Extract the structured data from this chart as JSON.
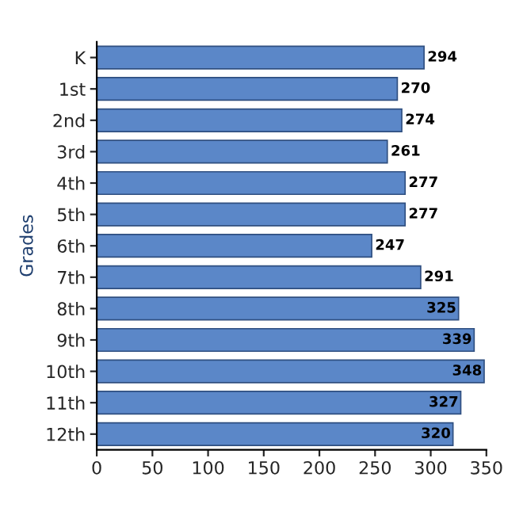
{
  "chart_data": {
    "type": "bar",
    "orientation": "horizontal",
    "ylabel": "Grades",
    "categories": [
      "K",
      "1st",
      "2nd",
      "3rd",
      "4th",
      "5th",
      "6th",
      "7th",
      "8th",
      "9th",
      "10th",
      "11th",
      "12th"
    ],
    "values": [
      294,
      270,
      274,
      261,
      277,
      277,
      247,
      291,
      325,
      339,
      348,
      327,
      320
    ],
    "color": "#5b87c8",
    "xlim": [
      0,
      350
    ],
    "xticks": [
      0,
      50,
      100,
      150,
      200,
      250,
      300,
      350
    ],
    "data_labels": true,
    "grid": false,
    "legend": false
  }
}
